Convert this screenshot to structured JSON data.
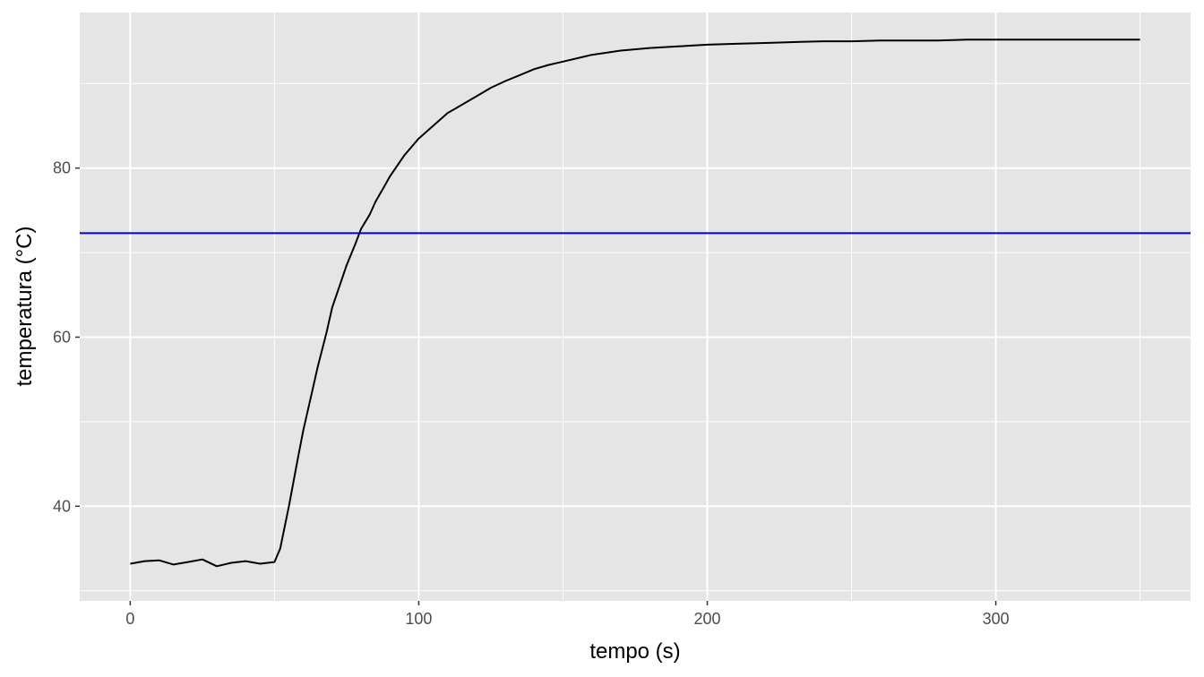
{
  "chart_data": {
    "type": "line",
    "title": "",
    "xlabel": "tempo (s)",
    "ylabel": "temperatura (°C)",
    "xlim": [
      -17.5,
      367.5
    ],
    "ylim": [
      28.8,
      98.4
    ],
    "x_ticks": [
      0,
      100,
      200,
      300
    ],
    "x_tick_labels": [
      "0",
      "100",
      "200",
      "300"
    ],
    "x_minor_ticks": [
      50,
      150,
      250,
      350
    ],
    "y_ticks": [
      40,
      60,
      80
    ],
    "y_tick_labels": [
      "40",
      "60",
      "80"
    ],
    "y_minor_ticks": [
      30,
      50,
      70,
      90
    ],
    "grid": true,
    "legend": "none",
    "series": [
      {
        "color": "#000000",
        "x": [
          0,
          5,
          10,
          15,
          20,
          25,
          30,
          35,
          40,
          45,
          50,
          52,
          55,
          58,
          60,
          63,
          65,
          68,
          70,
          73,
          75,
          78,
          80,
          83,
          85,
          88,
          90,
          95,
          100,
          105,
          110,
          115,
          120,
          125,
          130,
          135,
          140,
          145,
          150,
          155,
          160,
          170,
          180,
          190,
          200,
          210,
          220,
          230,
          240,
          250,
          260,
          270,
          280,
          290,
          300,
          310,
          320,
          330,
          340,
          350
        ],
        "y": [
          33.2,
          33.5,
          33.6,
          33.1,
          33.4,
          33.7,
          32.9,
          33.3,
          33.5,
          33.2,
          33.4,
          35.0,
          40.0,
          45.5,
          49.0,
          53.5,
          56.5,
          60.5,
          63.5,
          66.5,
          68.5,
          71.0,
          72.8,
          74.5,
          76.0,
          77.8,
          79.0,
          81.5,
          83.5,
          85.0,
          86.5,
          87.5,
          88.5,
          89.5,
          90.3,
          91.0,
          91.7,
          92.2,
          92.6,
          93.0,
          93.4,
          93.9,
          94.2,
          94.4,
          94.6,
          94.7,
          94.8,
          94.9,
          95.0,
          95.0,
          95.1,
          95.1,
          95.1,
          95.2,
          95.2,
          95.2,
          95.2,
          95.2,
          95.2,
          95.2
        ]
      }
    ],
    "hline": {
      "y": 72.3,
      "color": "#0000cc"
    }
  }
}
